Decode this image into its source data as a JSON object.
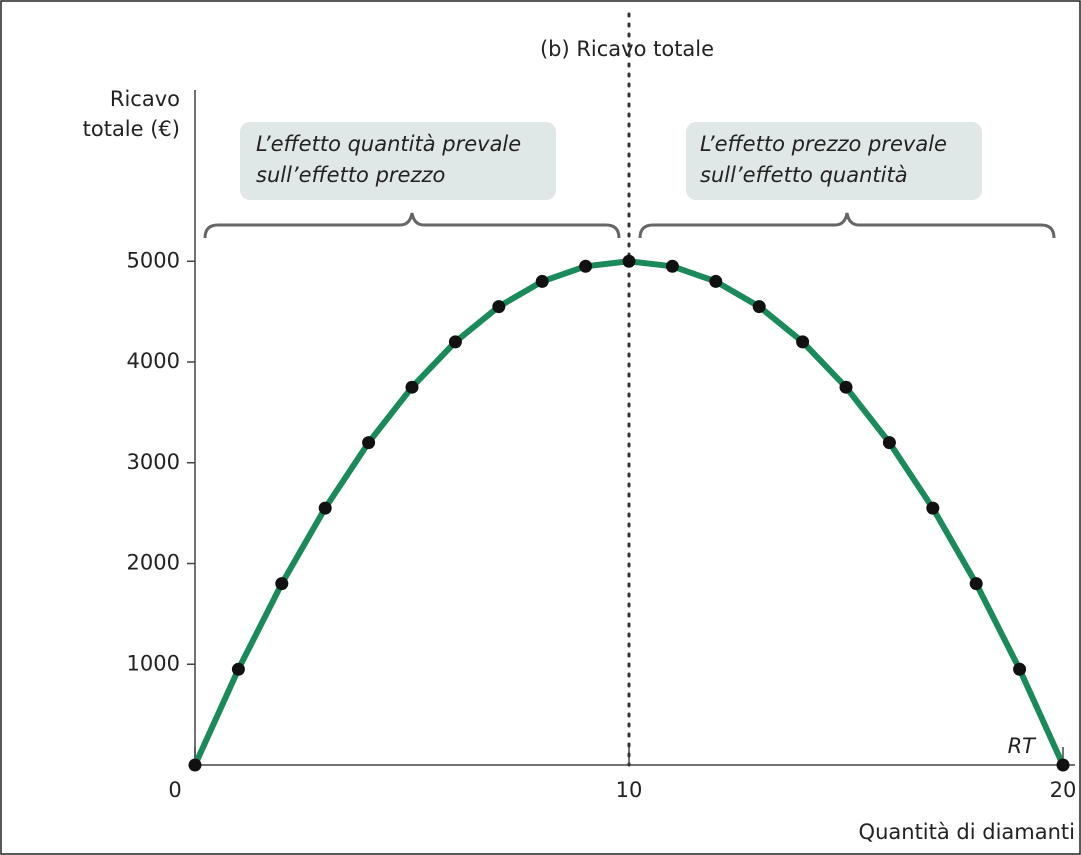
{
  "chart_data": {
    "type": "line",
    "title": "(b) Ricavo totale",
    "y_label": [
      "Ricavo",
      "totale (€)"
    ],
    "x_label": "Quantità di diamanti",
    "x": [
      0,
      1,
      2,
      3,
      4,
      5,
      6,
      7,
      8,
      9,
      10,
      11,
      12,
      13,
      14,
      15,
      16,
      17,
      18,
      19,
      20
    ],
    "series": [
      {
        "name": "RT",
        "color": "#1a8a5a",
        "values": [
          0,
          950,
          1800,
          2550,
          3200,
          3750,
          4200,
          4550,
          4800,
          4950,
          5000,
          4950,
          4800,
          4550,
          4200,
          3750,
          3200,
          2550,
          1800,
          950,
          0
        ]
      }
    ],
    "xlim": [
      0,
      20
    ],
    "ylim": [
      0,
      6700
    ],
    "xticks": [
      0,
      10,
      20
    ],
    "yticks": [
      1000,
      2000,
      3000,
      4000,
      5000
    ],
    "vline": 10,
    "annotations": [
      {
        "lines": [
          "L’effetto quantità prevale",
          "sull’effetto prezzo"
        ]
      },
      {
        "lines": [
          "L’effetto prezzo prevale",
          "sull’effetto quantità"
        ]
      }
    ]
  }
}
